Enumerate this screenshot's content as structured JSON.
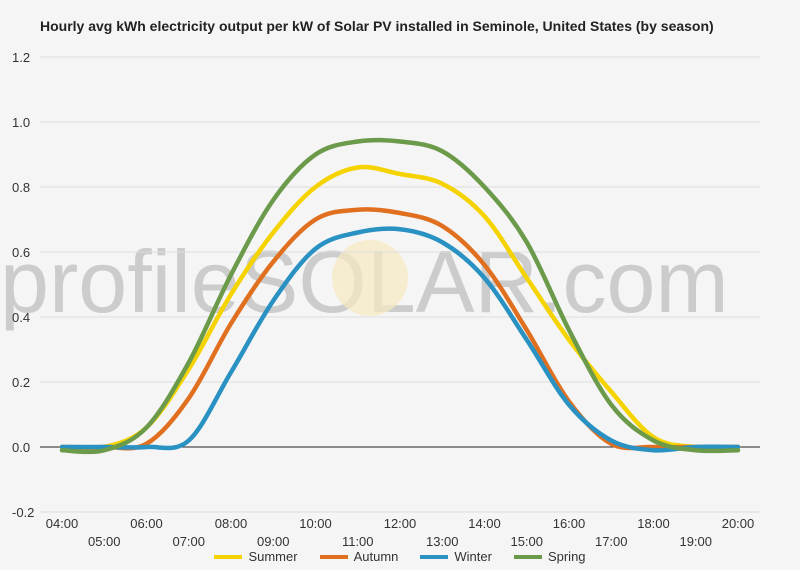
{
  "chart_data": {
    "type": "line",
    "title": "Hourly avg kWh electricity output per kW of Solar PV installed in Seminole, United States (by season)",
    "watermark": "profileSOLAR.com",
    "ylim": [
      -0.2,
      1.2
    ],
    "yticks": [
      "-0.2",
      "0.0",
      "0.2",
      "0.4",
      "0.6",
      "0.8",
      "1.0",
      "1.2"
    ],
    "x_upper": [
      "04:00",
      "06:00",
      "08:00",
      "10:00",
      "12:00",
      "14:00",
      "16:00",
      "18:00",
      "20:00"
    ],
    "x_lower": [
      "05:00",
      "07:00",
      "09:00",
      "11:00",
      "13:00",
      "15:00",
      "17:00",
      "19:00"
    ],
    "x": [
      4,
      5,
      6,
      7,
      8,
      9,
      10,
      11,
      12,
      13,
      14,
      15,
      16,
      17,
      18,
      19,
      20
    ],
    "series": [
      {
        "name": "Summer",
        "color": "#f5d300",
        "values": [
          0,
          0,
          0.06,
          0.24,
          0.47,
          0.66,
          0.8,
          0.86,
          0.84,
          0.81,
          0.71,
          0.52,
          0.33,
          0.17,
          0.03,
          0,
          0
        ]
      },
      {
        "name": "Autumn",
        "color": "#e07020",
        "values": [
          0,
          0,
          0.01,
          0.15,
          0.38,
          0.57,
          0.7,
          0.73,
          0.72,
          0.68,
          0.56,
          0.36,
          0.14,
          0.01,
          0,
          0,
          0
        ]
      },
      {
        "name": "Winter",
        "color": "#2a92c2",
        "values": [
          0,
          0,
          0,
          0.02,
          0.23,
          0.45,
          0.61,
          0.66,
          0.67,
          0.63,
          0.52,
          0.33,
          0.13,
          0.02,
          -0.01,
          0,
          0
        ]
      },
      {
        "name": "Spring",
        "color": "#6b9a4a",
        "values": [
          -0.01,
          -0.01,
          0.06,
          0.26,
          0.53,
          0.76,
          0.9,
          0.94,
          0.94,
          0.91,
          0.8,
          0.63,
          0.36,
          0.13,
          0.02,
          -0.01,
          -0.01
        ]
      }
    ]
  }
}
